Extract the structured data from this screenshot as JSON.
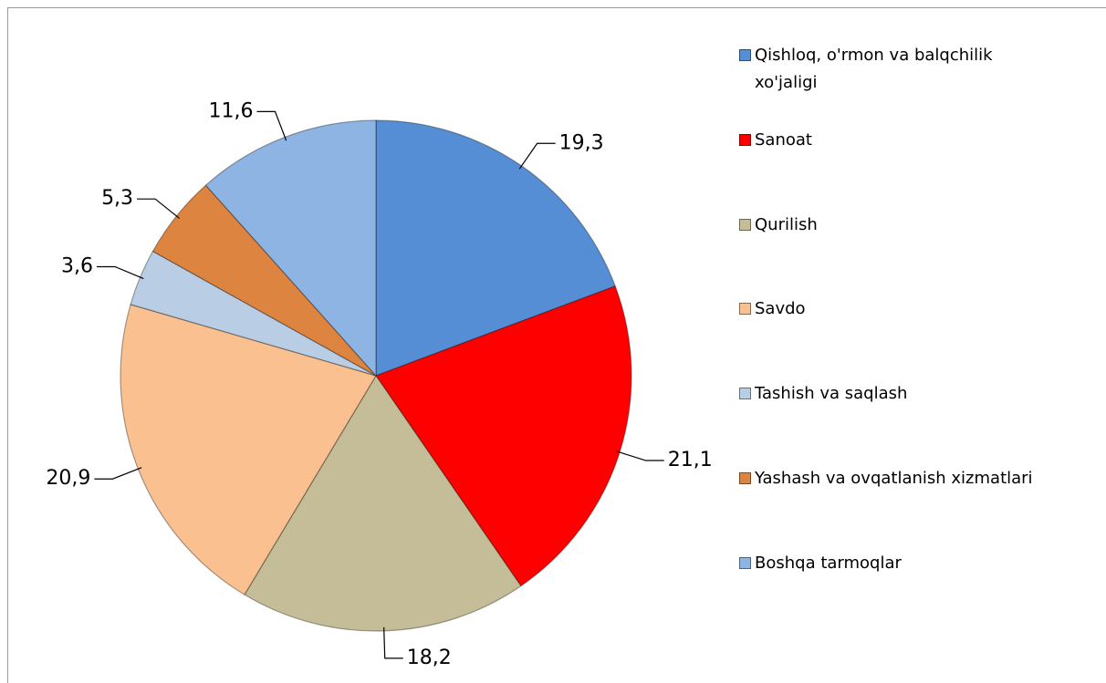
{
  "chart_data": {
    "type": "pie",
    "categories": [
      "Qishloq, o'rmon va balqchilik xo'jaligi",
      "Sanoat",
      "Qurilish",
      "Savdo",
      "Tashish va saqlash",
      "Yashash va ovqatlanish xizmatlari",
      "Boshqa tarmoqlar"
    ],
    "values": [
      19.3,
      21.1,
      18.2,
      20.9,
      3.6,
      5.3,
      11.6
    ],
    "value_labels": [
      "19,3",
      "21,1",
      "18,2",
      "20,9",
      "3,6",
      "5,3",
      "11,6"
    ],
    "colors": [
      "#558ed5",
      "#ff0000",
      "#c4bd97",
      "#fac090",
      "#b9cde5",
      "#dd8540",
      "#8eb4e3"
    ],
    "legend": "right"
  }
}
